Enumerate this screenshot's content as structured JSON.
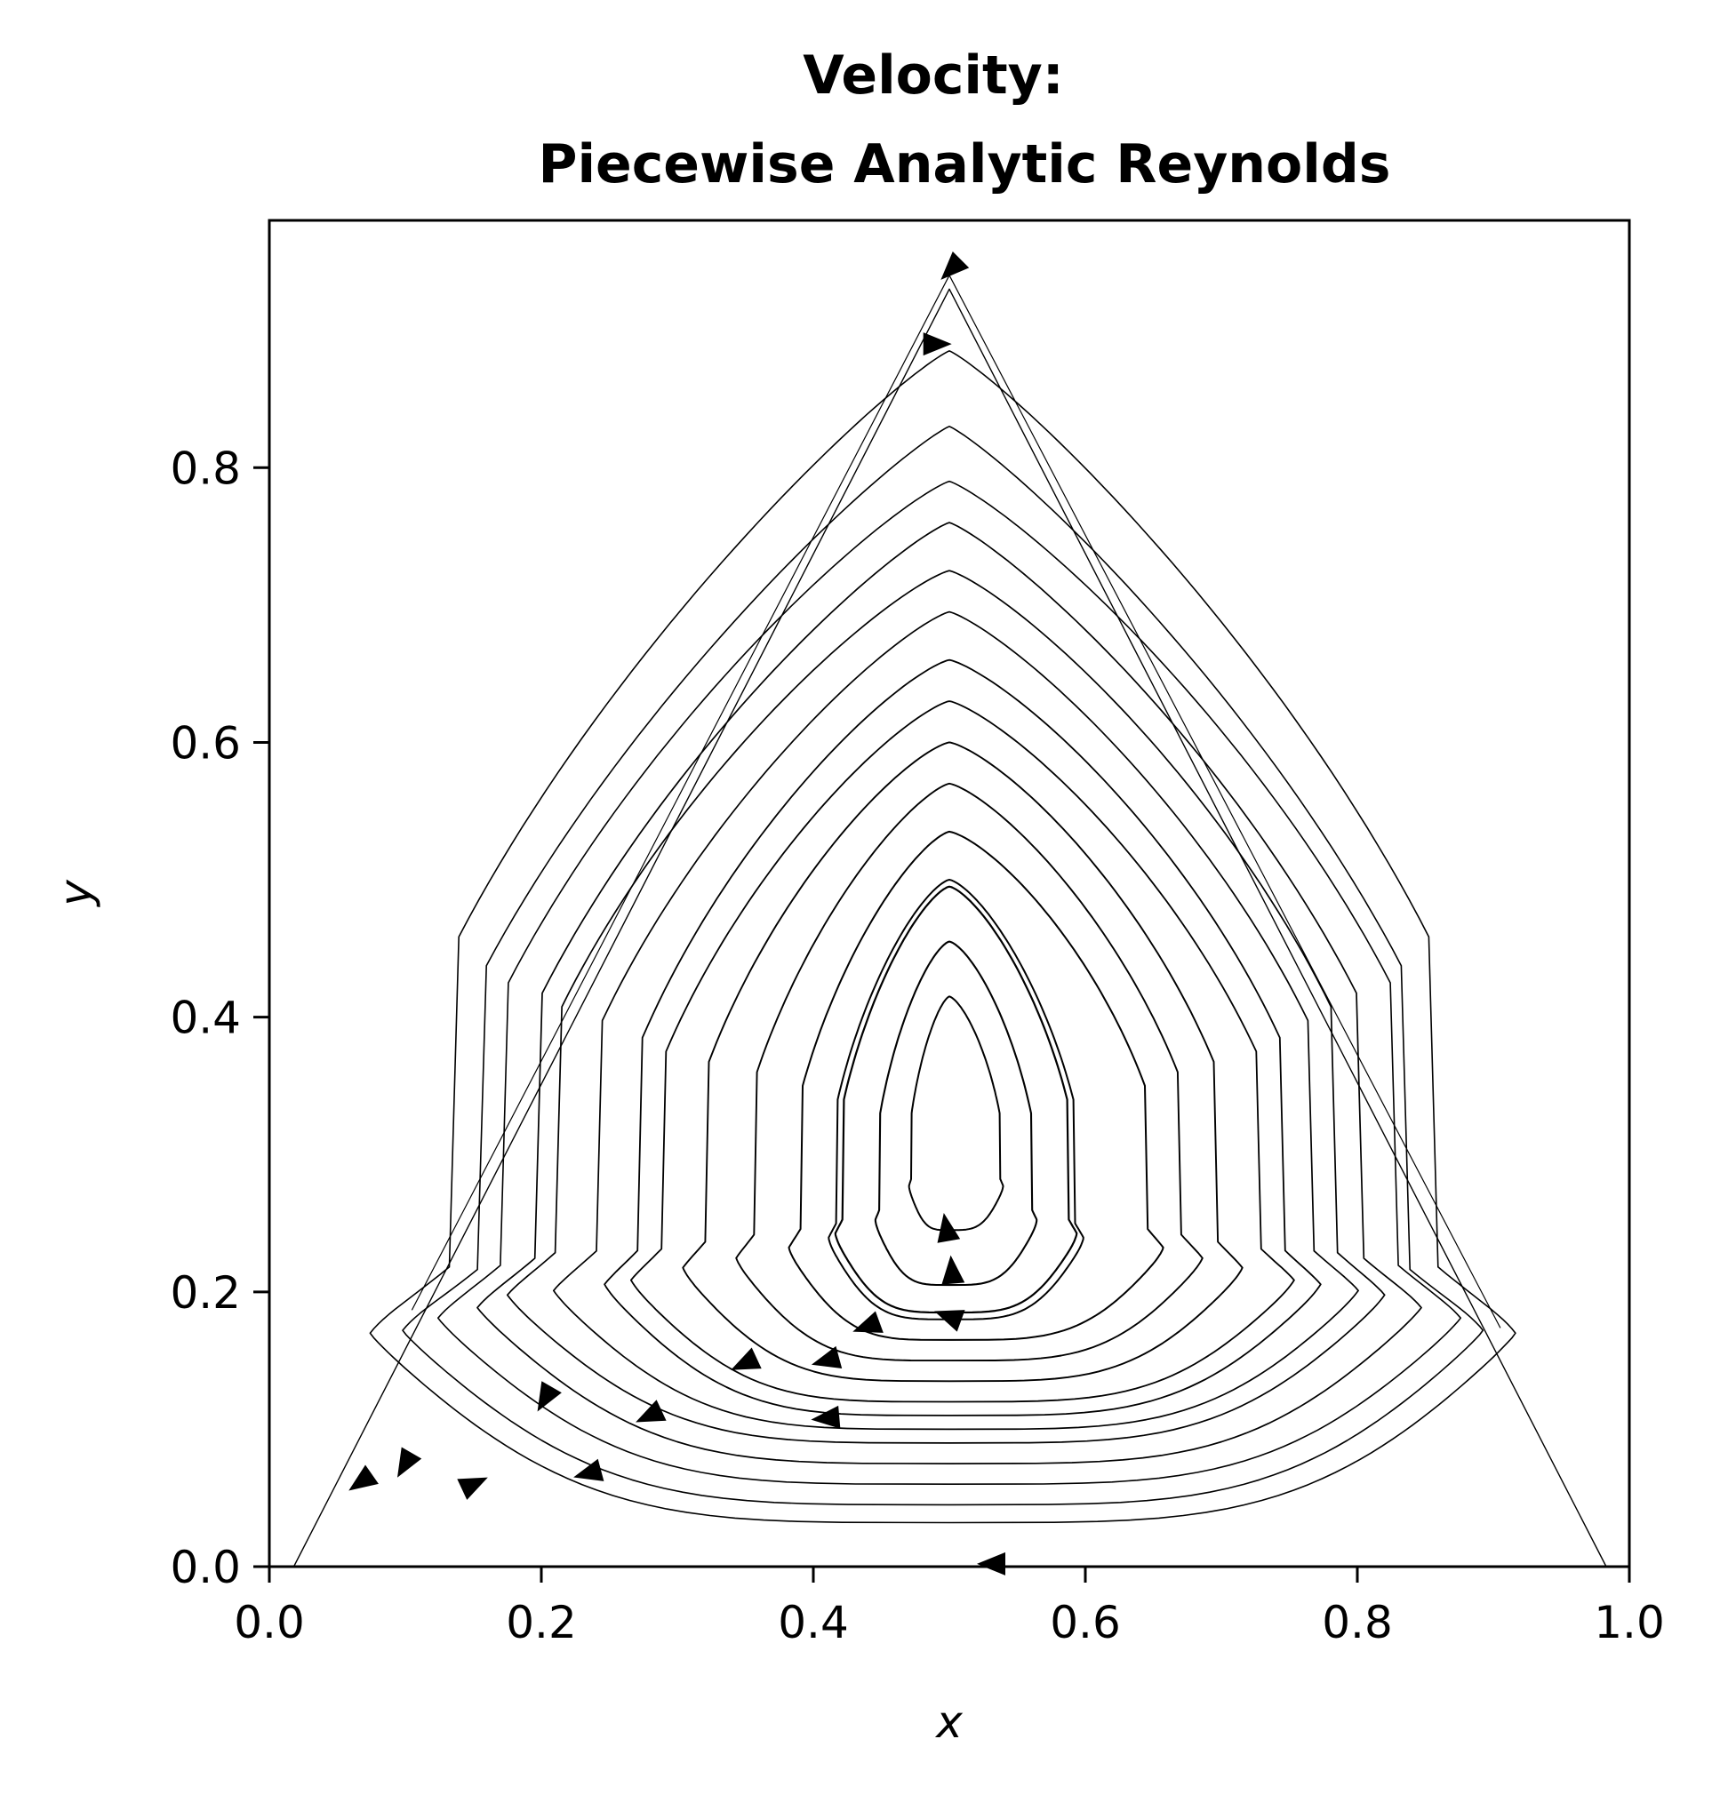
{
  "chart_data": {
    "type": "streamplot",
    "title_lines": [
      "Velocity:",
      "Piecewise Analytic Reynolds"
    ],
    "xlabel": "x",
    "ylabel": "y",
    "xlim": [
      0.0,
      1.0
    ],
    "ylim": [
      0.0,
      0.98
    ],
    "xticks": [
      0.0,
      0.2,
      0.4,
      0.6,
      0.8,
      1.0
    ],
    "xtick_labels": [
      "0.0",
      "0.2",
      "0.4",
      "0.6",
      "0.8",
      "1.0"
    ],
    "yticks": [
      0.0,
      0.2,
      0.4,
      0.6,
      0.8
    ],
    "ytick_labels": [
      "0.0",
      "0.2",
      "0.4",
      "0.6",
      "0.8"
    ],
    "line_color": "#000000",
    "domain_vertices": [
      [
        0.0,
        0.0
      ],
      [
        1.0,
        0.0
      ],
      [
        0.5,
        0.866
      ]
    ],
    "streamlines": [
      {
        "closed": false,
        "width": 1.2,
        "points": [
          [
            0.105,
            0.187
          ],
          [
            0.5,
            0.94
          ],
          [
            0.905,
            0.174
          ]
        ]
      },
      {
        "closed": false,
        "width": 1.4,
        "points": [
          [
            0.983,
            0.0
          ],
          [
            0.5,
            0.93
          ],
          [
            0.018,
            0.0
          ]
        ]
      },
      {
        "closed": true,
        "width": 1.6,
        "x0": 0.055,
        "x1": 0.935,
        "y0": 0.032,
        "y1": 0.885,
        "xc": 0.5,
        "bot": 0.03,
        "tipP": 1.6,
        "side": 0.35
      },
      {
        "closed": true,
        "width": 1.6,
        "x0": 0.08,
        "x1": 0.91,
        "y0": 0.045,
        "y1": 0.83,
        "xc": 0.5,
        "bot": 0.03,
        "tipP": 1.6,
        "side": 0.4
      },
      {
        "closed": true,
        "width": 1.6,
        "x0": 0.11,
        "x1": 0.89,
        "y0": 0.06,
        "y1": 0.79,
        "xc": 0.5,
        "bot": 0.035,
        "tipP": 1.7,
        "side": 0.45
      },
      {
        "closed": true,
        "width": 1.7,
        "x0": 0.14,
        "x1": 0.86,
        "y0": 0.075,
        "y1": 0.76,
        "xc": 0.5,
        "bot": 0.04,
        "tipP": 1.7,
        "side": 0.5
      },
      {
        "closed": true,
        "width": 1.7,
        "x0": 0.165,
        "x1": 0.83,
        "y0": 0.09,
        "y1": 0.725,
        "xc": 0.5,
        "bot": 0.045,
        "tipP": 1.8,
        "side": 0.55
      },
      {
        "closed": true,
        "width": 1.7,
        "x0": 0.2,
        "x1": 0.81,
        "y0": 0.1,
        "y1": 0.695,
        "xc": 0.5,
        "bot": 0.05,
        "tipP": 1.8,
        "side": 0.6
      },
      {
        "closed": true,
        "width": 1.8,
        "x0": 0.24,
        "x1": 0.78,
        "y0": 0.11,
        "y1": 0.66,
        "xc": 0.5,
        "bot": 0.055,
        "tipP": 1.9,
        "side": 0.65
      },
      {
        "closed": true,
        "width": 1.8,
        "x0": 0.26,
        "x1": 0.76,
        "y0": 0.12,
        "y1": 0.63,
        "xc": 0.5,
        "bot": 0.06,
        "tipP": 1.9,
        "side": 0.7
      },
      {
        "closed": true,
        "width": 1.9,
        "x0": 0.3,
        "x1": 0.72,
        "y0": 0.135,
        "y1": 0.6,
        "xc": 0.5,
        "bot": 0.065,
        "tipP": 2.0,
        "side": 0.75
      },
      {
        "closed": true,
        "width": 1.9,
        "x0": 0.34,
        "x1": 0.69,
        "y0": 0.15,
        "y1": 0.57,
        "xc": 0.5,
        "bot": 0.07,
        "tipP": 2.0,
        "side": 0.8
      },
      {
        "closed": true,
        "width": 2.0,
        "x0": 0.38,
        "x1": 0.66,
        "y0": 0.165,
        "y1": 0.535,
        "xc": 0.5,
        "bot": 0.07,
        "tipP": 2.1,
        "side": 0.85
      },
      {
        "closed": true,
        "width": 2.0,
        "x0": 0.41,
        "x1": 0.6,
        "y0": 0.18,
        "y1": 0.5,
        "xc": 0.5,
        "bot": 0.07,
        "tipP": 2.2,
        "side": 0.9
      },
      {
        "closed": true,
        "width": 2.2,
        "x0": 0.415,
        "x1": 0.595,
        "y0": 0.185,
        "y1": 0.495,
        "xc": 0.5,
        "bot": 0.07,
        "tipP": 2.2,
        "side": 0.9
      },
      {
        "closed": true,
        "width": 2.1,
        "x0": 0.445,
        "x1": 0.565,
        "y0": 0.205,
        "y1": 0.455,
        "xc": 0.5,
        "bot": 0.07,
        "tipP": 2.3,
        "side": 0.95
      },
      {
        "closed": true,
        "width": 2.0,
        "x0": 0.47,
        "x1": 0.54,
        "y0": 0.245,
        "y1": 0.415,
        "xc": 0.5,
        "bot": 0.06,
        "tipP": 2.3,
        "side": 1.0
      }
    ],
    "arrows": [
      {
        "x": 0.502,
        "y": 0.945,
        "angle": 225
      },
      {
        "x": 0.49,
        "y": 0.89,
        "angle": 0
      },
      {
        "x": 0.068,
        "y": 0.062,
        "angle": 215
      },
      {
        "x": 0.1,
        "y": 0.075,
        "angle": 240
      },
      {
        "x": 0.15,
        "y": 0.06,
        "angle": 25
      },
      {
        "x": 0.203,
        "y": 0.123,
        "angle": 240
      },
      {
        "x": 0.235,
        "y": 0.068,
        "angle": 195
      },
      {
        "x": 0.28,
        "y": 0.11,
        "angle": 205
      },
      {
        "x": 0.35,
        "y": 0.148,
        "angle": 205
      },
      {
        "x": 0.41,
        "y": 0.15,
        "angle": 195
      },
      {
        "x": 0.44,
        "y": 0.175,
        "angle": 200
      },
      {
        "x": 0.41,
        "y": 0.108,
        "angle": 185
      },
      {
        "x": 0.5,
        "y": 0.182,
        "angle": 160
      },
      {
        "x": 0.502,
        "y": 0.215,
        "angle": 95
      },
      {
        "x": 0.498,
        "y": 0.246,
        "angle": 100
      },
      {
        "x": 0.532,
        "y": 0.002,
        "angle": 180
      }
    ]
  }
}
